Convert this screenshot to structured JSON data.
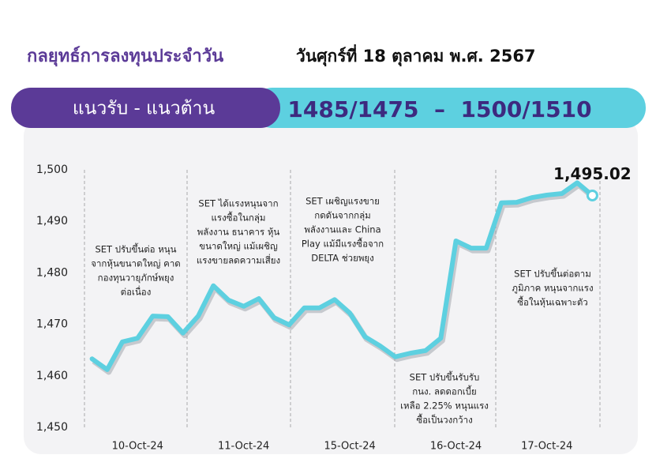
{
  "header": {
    "title": "กลยุทธ์การลงทุนประจำวัน",
    "date": "วันศุกร์ที่ 18 ตุลาคม พ.ศ. 2567",
    "banner_label": "แนวรับ - แนวต้าน",
    "banner_values": "1485/1475  –  1500/1510"
  },
  "chart_data": {
    "type": "line",
    "categories": [
      null,
      null,
      null,
      "10-Oct-24",
      null,
      null,
      null,
      null,
      null,
      null,
      "11-Oct-24",
      null,
      null,
      null,
      null,
      null,
      null,
      "15-Oct-24",
      null,
      null,
      null,
      null,
      null,
      null,
      "16-Oct-24",
      null,
      null,
      null,
      null,
      null,
      "17-Oct-24",
      null,
      null,
      null
    ],
    "values": [
      1463.3,
      1461.2,
      1466.6,
      1467.3,
      1471.6,
      1471.5,
      1468.3,
      1471.6,
      1477.5,
      1474.7,
      1473.5,
      1475.0,
      1471.3,
      1469.9,
      1473.2,
      1473.2,
      1474.8,
      1472.2,
      1467.6,
      1465.8,
      1463.7,
      1464.4,
      1464.9,
      1467.3,
      1486.2,
      1484.8,
      1484.8,
      1493.6,
      1493.7,
      1494.6,
      1495.1,
      1495.4,
      1497.5,
      1495.02
    ],
    "value_labels": [
      null,
      null,
      null,
      null,
      null,
      null,
      null,
      null,
      null,
      null,
      null,
      null,
      null,
      null,
      null,
      null,
      null,
      null,
      null,
      null,
      null,
      null,
      null,
      null,
      null,
      null,
      null,
      null,
      null,
      null,
      null,
      null,
      null,
      "1,495.02"
    ],
    "color": "#5dd0e0",
    "ylim": [
      1450,
      1500
    ],
    "yticks": [
      {
        "value": 1450,
        "label": "1,450"
      },
      {
        "value": 1460,
        "label": "1,460"
      },
      {
        "value": 1470,
        "label": "1,470"
      },
      {
        "value": 1480,
        "label": "1,480"
      },
      {
        "value": 1490,
        "label": "1,490"
      },
      {
        "value": 1500,
        "label": "1,500"
      }
    ],
    "annotations": [
      [
        "SET ปรับขึ้นต่อ หนุน",
        "จากหุ้นขนาดใหญ่ คาด",
        "กองทุนวายุภักษ์พยุง",
        "ต่อเนื่อง"
      ],
      [
        "SET ได้แรงหนุนจาก",
        "แรงซื้อในกลุ่ม",
        "พลังงาน ธนาคาร หุ้น",
        "ขนาดใหญ่ แม้เผชิญ",
        "แรงขายลดความเสี่ยง"
      ],
      [
        "SET เผชิญแรงขาย",
        "กดดันจากกลุ่ม",
        "พลังงานและ China",
        "Play แม้มีแรงซื้อจาก",
        "DELTA ช่วยพยุง"
      ],
      [
        "SET ปรับขึ้นรับรับ",
        "กนง. ลดดอกเบี้ย",
        "เหลือ 2.25% หนุนแรง",
        "ซื้อเป็นวงกว้าง"
      ],
      [
        "SET ปรับขึ้นต่อตาม",
        "ภูมิภาค หนุนจากแรง",
        "ซื้อในหุ้นเฉพาะตัว"
      ]
    ]
  }
}
